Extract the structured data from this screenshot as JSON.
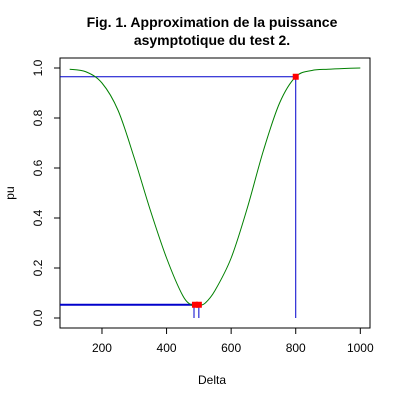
{
  "chart_data": {
    "type": "line",
    "title_lines": [
      "Fig. 1. Approximation de la puissance",
      "asymptotique du test 2."
    ],
    "xlabel": "Delta",
    "ylabel": "pu",
    "xlim": [
      70,
      1030
    ],
    "ylim": [
      -0.04,
      1.04
    ],
    "xticks": [
      200,
      400,
      600,
      800,
      1000
    ],
    "xtick_labels": [
      "200",
      "400",
      "600",
      "800",
      "1000"
    ],
    "yticks": [
      0.0,
      0.2,
      0.4,
      0.6,
      0.8,
      1.0
    ],
    "ytick_labels": [
      "0.0",
      "0.2",
      "0.4",
      "0.6",
      "0.8",
      "1.0"
    ],
    "grid": false,
    "series": [
      {
        "color": "#008000",
        "x": [
          100,
          150,
          200,
          250,
          300,
          350,
          400,
          450,
          480,
          500,
          520,
          550,
          600,
          650,
          700,
          750,
          800,
          850,
          900,
          950,
          1000
        ],
        "y": [
          0.995,
          0.985,
          0.94,
          0.83,
          0.64,
          0.43,
          0.24,
          0.09,
          0.05,
          0.05,
          0.06,
          0.11,
          0.24,
          0.44,
          0.67,
          0.86,
          0.965,
          0.99,
          0.995,
          0.998,
          1.0
        ]
      }
    ],
    "reference_lines": [
      {
        "color": "#0000cc",
        "width": 1,
        "kind": "horizontal",
        "y": 0.965,
        "x_from": 70,
        "x_to": 800
      },
      {
        "color": "#0000cc",
        "width": 1,
        "kind": "vertical",
        "x": 800,
        "y_from": 0.0,
        "y_to": 0.965
      },
      {
        "color": "#0000cc",
        "width": 2,
        "kind": "horizontal",
        "y": 0.053,
        "x_from": 70,
        "x_to": 495
      },
      {
        "color": "#0000cc",
        "width": 1,
        "kind": "vertical",
        "x": 485,
        "y_from": 0.0,
        "y_to": 0.053
      },
      {
        "color": "#0000cc",
        "width": 1,
        "kind": "vertical",
        "x": 500,
        "y_from": 0.0,
        "y_to": 0.053
      }
    ],
    "markers": [
      {
        "x": 800,
        "y": 0.965,
        "color": "#ff0000"
      },
      {
        "x": 488,
        "y": 0.053,
        "color": "#ff0000"
      },
      {
        "x": 500,
        "y": 0.053,
        "color": "#ff0000"
      }
    ]
  }
}
